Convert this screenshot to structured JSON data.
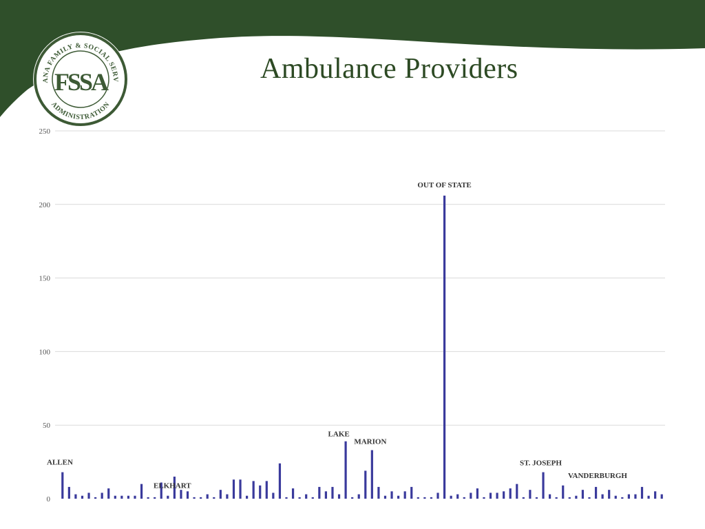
{
  "colors": {
    "header_green": "#2f4f2a",
    "title_green": "#2d4a24",
    "bar_color": "#3a3a9c",
    "logo_ring": "#3d5a35"
  },
  "logo": {
    "letters": "FSSA",
    "ring_text_top": "INDIANA FAMILY & SOCIAL SERVICES",
    "ring_text_bottom": "ADMINISTRATION"
  },
  "title": "Ambulance Providers",
  "chart_data": {
    "type": "bar",
    "ylim": [
      0,
      250
    ],
    "yticks": [
      0,
      50,
      100,
      150,
      200,
      250
    ],
    "grid": true,
    "values": [
      18,
      8,
      3,
      2,
      4,
      1,
      4,
      7,
      2,
      2,
      2,
      2,
      10,
      1,
      1,
      11,
      2,
      15,
      6,
      5,
      1,
      1,
      3,
      1,
      6,
      3,
      13,
      13,
      2,
      12,
      9,
      12,
      4,
      24,
      1,
      7,
      1,
      3,
      1,
      8,
      5,
      8,
      3,
      39,
      1,
      3,
      19,
      33,
      8,
      2,
      5,
      2,
      5,
      8,
      1,
      1,
      1,
      4,
      206,
      2,
      3,
      1,
      4,
      7,
      1,
      4,
      4,
      5,
      7,
      10,
      1,
      6,
      1,
      18,
      3,
      1,
      9,
      1,
      2,
      6,
      1,
      8,
      3,
      6,
      2,
      1,
      3,
      3,
      8,
      2,
      5,
      3
    ],
    "annotations": [
      {
        "index": 0,
        "label": "ALLEN"
      },
      {
        "index": 16,
        "label": "ELKHART"
      },
      {
        "index": 43,
        "label": "LAKE"
      },
      {
        "index": 47,
        "label": "MARION"
      },
      {
        "index": 58,
        "label": "OUT OF STATE"
      },
      {
        "index": 73,
        "label": "ST. JOSEPH"
      },
      {
        "index": 80,
        "label": "VANDERBURGH"
      }
    ]
  }
}
